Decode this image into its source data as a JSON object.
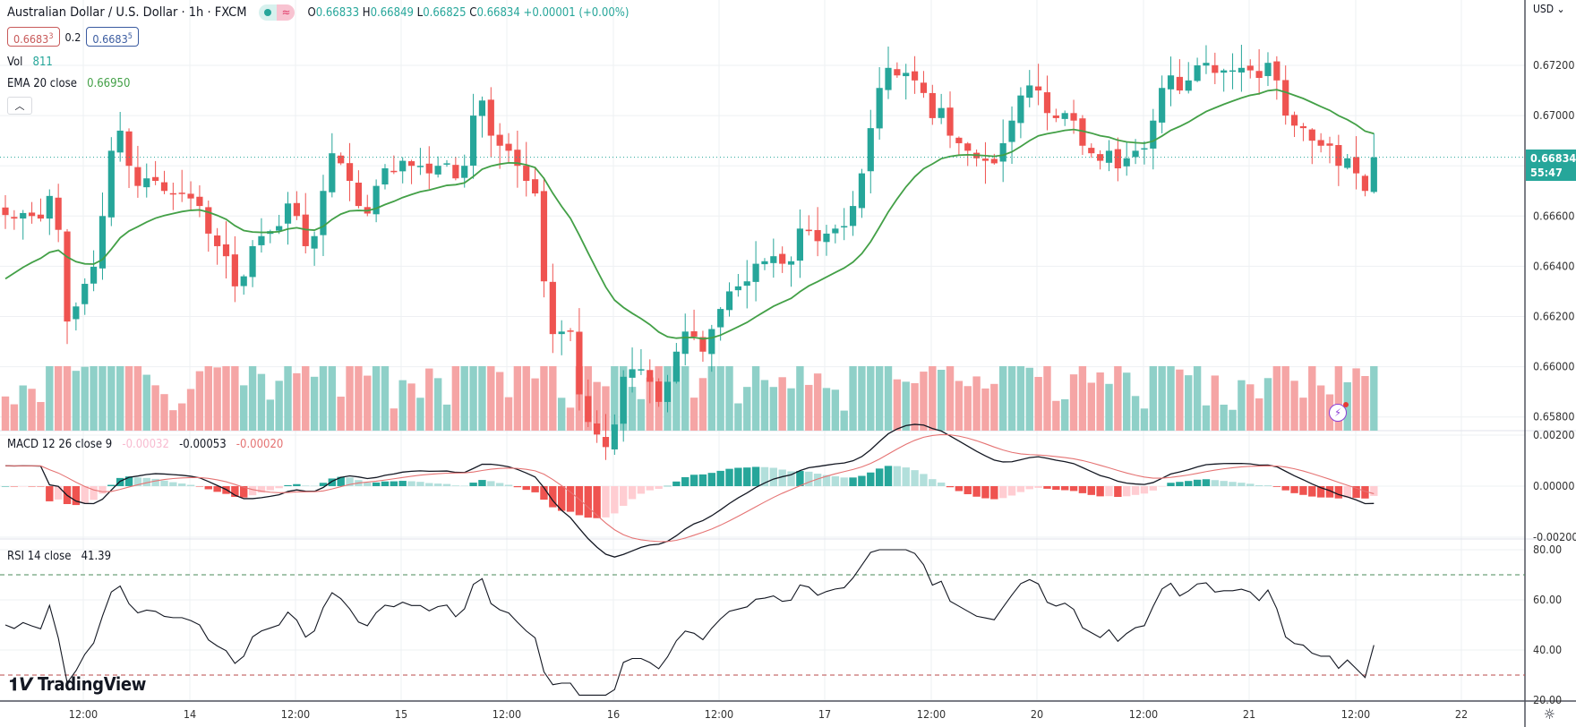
{
  "header": {
    "symbol_title": "Australian Dollar / U.S. Dollar · 1h · FXCM",
    "ohlc": {
      "o_label": "O",
      "o": "0.66833",
      "h_label": "H",
      "h": "0.66849",
      "l_label": "L",
      "l": "0.66825",
      "c_label": "C",
      "c": "0.66834",
      "change": "+0.00001 (+0.00%)"
    },
    "bid": "0.66833",
    "bid_main": "0.6683",
    "bid_pip": "3",
    "spread": "0.2",
    "ask_main": "0.6683",
    "ask_pip": "5",
    "status_icons": [
      "market-open-dot-icon",
      "delayed-data-wave-icon"
    ]
  },
  "legends": {
    "vol": {
      "label": "Vol",
      "value": "811"
    },
    "ema": {
      "label": "EMA 20 close",
      "value": "0.66950"
    },
    "macd": {
      "label": "MACD 12 26 close 9",
      "hist": "-0.00032",
      "macd": "-0.00053",
      "signal": "-0.00020"
    },
    "rsi": {
      "label": "RSI 14 close",
      "value": "41.39"
    },
    "collapse_icon": "chevron-up-icon"
  },
  "price_axis": {
    "currency": "USD",
    "ticks": [
      "0.67200",
      "0.67000",
      "0.66600",
      "0.66400",
      "0.66200",
      "0.66000",
      "0.65800"
    ],
    "last_price": "0.66834",
    "countdown": "55:47"
  },
  "macd_axis": {
    "ticks": [
      "0.00200",
      "0.00000",
      "-0.00200"
    ]
  },
  "rsi_axis": {
    "ticks": [
      "80.00",
      "60.00",
      "40.00",
      "20.00"
    ]
  },
  "time_axis": {
    "ticks": [
      "12:00",
      "14",
      "12:00",
      "15",
      "12:00",
      "16",
      "12:00",
      "17",
      "12:00",
      "20",
      "12:00",
      "21",
      "12:00",
      "22"
    ]
  },
  "branding": {
    "logo_text": "TradingView"
  },
  "colors": {
    "up": "#26a69a",
    "down": "#ef5350",
    "ema": "#43a047",
    "macd": "#131722",
    "signal": "#e57373",
    "rsi": "#131722",
    "overbought": "#4a8a5a",
    "oversold": "#b84a4a",
    "vol_up": "#8fd0c8",
    "vol_down": "#f5a5a5"
  },
  "chart_data": {
    "type": "candlestick",
    "title": "Australian Dollar / U.S. Dollar · 1h · FXCM",
    "timeframe": "1h",
    "price_range": [
      0.6575,
      0.6735
    ],
    "closes": [
      0.66604,
      0.6659,
      0.66612,
      0.666,
      0.6659,
      0.6668,
      0.66545,
      0.6618,
      0.6624,
      0.6633,
      0.66398,
      0.666,
      0.6686,
      0.6694,
      0.668,
      0.6672,
      0.6675,
      0.6674,
      0.667,
      0.6669,
      0.6669,
      0.6667,
      0.6664,
      0.6653,
      0.6648,
      0.6644,
      0.6632,
      0.6636,
      0.6648,
      0.6652,
      0.6654,
      0.6656,
      0.6665,
      0.666,
      0.6648,
      0.6652,
      0.667,
      0.6685,
      0.6681,
      0.6674,
      0.6664,
      0.6661,
      0.6672,
      0.6679,
      0.6678,
      0.6682,
      0.668,
      0.668,
      0.6677,
      0.668,
      0.6681,
      0.6675,
      0.668,
      0.67,
      0.6706,
      0.6692,
      0.6688,
      0.6686,
      0.668,
      0.6674,
      0.6669,
      0.6634,
      0.6613,
      0.6614,
      0.6614,
      0.6589,
      0.6578,
      0.6573,
      0.6568,
      0.6577,
      0.6596,
      0.6599,
      0.6599,
      0.6594,
      0.6586,
      0.6594,
      0.6606,
      0.6614,
      0.6612,
      0.6606,
      0.6615,
      0.6623,
      0.663,
      0.6632,
      0.6634,
      0.6641,
      0.6642,
      0.6644,
      0.6641,
      0.6642,
      0.6655,
      0.6654,
      0.665,
      0.6653,
      0.6655,
      0.6656,
      0.6664,
      0.6677,
      0.6695,
      0.6711,
      0.6719,
      0.6716,
      0.6717,
      0.6714,
      0.6709,
      0.6699,
      0.6703,
      0.6692,
      0.6689,
      0.6686,
      0.6683,
      0.6682,
      0.6681,
      0.6689,
      0.6698,
      0.6708,
      0.6712,
      0.671,
      0.6701,
      0.6699,
      0.6701,
      0.6698,
      0.6688,
      0.6685,
      0.6682,
      0.6686,
      0.6679,
      0.6683,
      0.6686,
      0.6687,
      0.6698,
      0.6711,
      0.6716,
      0.671,
      0.6714,
      0.672,
      0.6721,
      0.6717,
      0.6718,
      0.6718,
      0.6719,
      0.6718,
      0.6715,
      0.6721,
      0.6714,
      0.67,
      0.6696,
      0.6695,
      0.669,
      0.6688,
      0.6688,
      0.668,
      0.6683,
      0.6677,
      0.667,
      0.66834
    ],
    "series": [
      {
        "name": "EMA 20 close",
        "last": 0.6695
      },
      {
        "name": "Volume",
        "last": 811
      },
      {
        "name": "MACD 12 26 close 9",
        "macd": -0.00053,
        "signal": -0.0002,
        "histogram": -0.00032
      },
      {
        "name": "RSI 14 close",
        "last": 41.39,
        "upper_band": 70,
        "lower_band": 30
      }
    ],
    "macd_range": [
      -0.0025,
      0.0022
    ],
    "rsi_range": [
      20,
      82
    ],
    "x_ticks": [
      "12:00",
      "14",
      "12:00",
      "15",
      "12:00",
      "16",
      "12:00",
      "17",
      "12:00",
      "20",
      "12:00",
      "21",
      "12:00",
      "22"
    ],
    "y_ticks": [
      "0.67200",
      "0.67000",
      "0.66600",
      "0.66400",
      "0.66200",
      "0.66000",
      "0.65800"
    ],
    "grid": true
  }
}
